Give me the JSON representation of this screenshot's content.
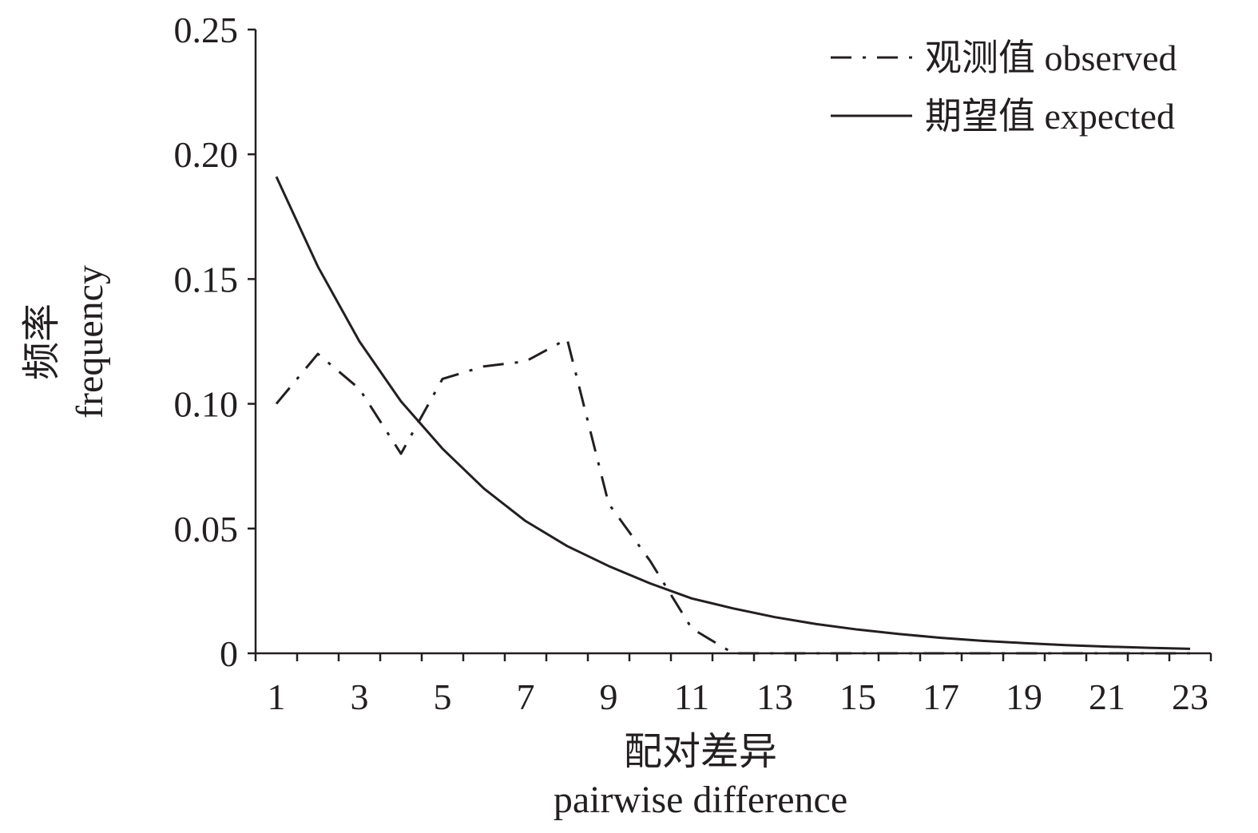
{
  "chart_data": {
    "type": "line",
    "xlabel_cn": "配对差异",
    "xlabel_en": "pairwise difference",
    "ylabel_cn": "频率",
    "ylabel_en": "frequency",
    "xlim": [
      0,
      23
    ],
    "ylim": [
      0,
      0.25
    ],
    "x_ticks": [
      1,
      3,
      5,
      7,
      9,
      11,
      13,
      15,
      17,
      19,
      21,
      23
    ],
    "y_ticks": [
      {
        "value": 0.25,
        "label": "0.25"
      },
      {
        "value": 0.2,
        "label": "0.20"
      },
      {
        "value": 0.15,
        "label": "0.15"
      },
      {
        "value": 0.1,
        "label": "0.10"
      },
      {
        "value": 0.05,
        "label": "0.05"
      },
      {
        "value": 0,
        "label": "0"
      }
    ],
    "legend_position": "top-right",
    "series": [
      {
        "name": "观测值 observed",
        "style": "dash-dot",
        "x": [
          0.5,
          1.5,
          2.5,
          3.5,
          4.5,
          5.5,
          6.5,
          7.5,
          8.5,
          9.5,
          10.5,
          11.5,
          12.5,
          13.5,
          14.5,
          15.5,
          16.5,
          17.5,
          18.5,
          19.5,
          20.5,
          21.5,
          22.5
        ],
        "values": [
          0.1,
          0.12,
          0.106,
          0.08,
          0.11,
          0.115,
          0.117,
          0.126,
          0.06,
          0.037,
          0.01,
          0.0,
          0.0,
          0.0,
          0.0,
          0.0,
          0.0,
          0.0,
          0.0,
          0.0,
          0.0,
          0.0,
          0.0
        ]
      },
      {
        "name": "期望值 expected",
        "style": "solid",
        "x": [
          0.5,
          1.5,
          2.5,
          3.5,
          4.5,
          5.5,
          6.5,
          7.5,
          8.5,
          9.5,
          10.5,
          11.5,
          12.5,
          13.5,
          14.5,
          15.5,
          16.5,
          17.5,
          18.5,
          19.5,
          20.5,
          21.5,
          22.5
        ],
        "values": [
          0.191,
          0.155,
          0.125,
          0.101,
          0.082,
          0.066,
          0.053,
          0.043,
          0.035,
          0.028,
          0.022,
          0.018,
          0.0145,
          0.0117,
          0.0095,
          0.0077,
          0.0062,
          0.005,
          0.0041,
          0.0033,
          0.0027,
          0.0022,
          0.0018
        ]
      }
    ]
  }
}
